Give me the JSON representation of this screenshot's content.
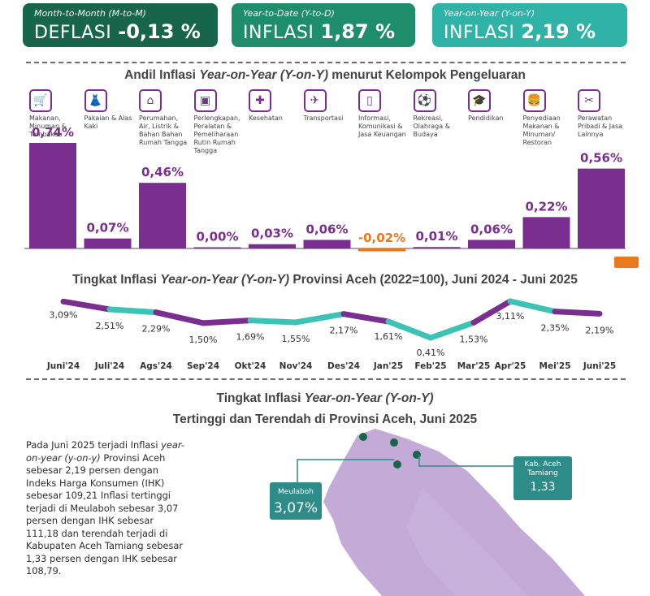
{
  "cards": [
    {
      "sub": "Month-to-Month (M-to-M)",
      "label": "DEFLASI",
      "value": "-0,13 %"
    },
    {
      "sub": "Year-to-Date (Y-to-D)",
      "label": "INFLASI",
      "value": "1,87  %"
    },
    {
      "sub": "Year-on-Year (Y-on-Y)",
      "label": "INFLASI",
      "value": "2,19 %"
    }
  ],
  "contrib": {
    "title_pre": "Andil Inflasi ",
    "title_em": "Year-on-Year (Y-on-Y)",
    "title_post": " menurut Kelompok Pengeluaran"
  },
  "categories": [
    {
      "name": "Makanan, Minuman & Tembakau",
      "icon": "grocery-basket-icon",
      "glyph": "🛒"
    },
    {
      "name": "Pakaian & Alas Kaki",
      "icon": "dress-icon",
      "glyph": "👗"
    },
    {
      "name": "Perumahan, Air, Listrik & Bahan Bahan Rumah Tangga",
      "icon": "house-icon",
      "glyph": "⌂"
    },
    {
      "name": "Perlengkapan, Peralatan & Pemeliharaan Rutin Rumah Tangga",
      "icon": "iron-icon",
      "glyph": "▣"
    },
    {
      "name": "Kesehatan",
      "icon": "medical-kit-icon",
      "glyph": "✚"
    },
    {
      "name": "Transportasi",
      "icon": "airplane-icon",
      "glyph": "✈"
    },
    {
      "name": "Informasi, Komunikasi & Jasa Keuangan",
      "icon": "phone-icon",
      "glyph": "▯"
    },
    {
      "name": "Rekreasi, Olahraga & Budaya",
      "icon": "soccer-player-icon",
      "glyph": "⚽"
    },
    {
      "name": "Pendidikan",
      "icon": "graduation-cap-icon",
      "glyph": "🎓"
    },
    {
      "name": "Penyediaan Makanan & Minuman/ Restoran",
      "icon": "fast-food-icon",
      "glyph": "🍔"
    },
    {
      "name": "Perawatan Pribadi & Jasa Lainnya",
      "icon": "tools-icon",
      "glyph": "✂"
    }
  ],
  "line": {
    "title_pre": "Tingkat Inflasi ",
    "title_em": "Year-on-Year (Y-on-Y)",
    "title_post": " Provinsi Aceh (2022=100), Juni 2024 - Juni 2025"
  },
  "map_title": {
    "line1_pre": "Tingkat Inflasi ",
    "line1_em": "Year-on-Year (Y-on-Y)",
    "line2": "Tertinggi dan Terendah di Provinsi Aceh, Juni 2025"
  },
  "paragraph": {
    "p1": "Pada Juni 2025 terjadi Inflasi ",
    "em": "year-on-year (y-on-y)",
    "p2": " Provinsi Aceh sebesar 2,19 persen dengan Indeks Harga Konsumen (IHK) sebesar 109,21 Inflasi tertinggi terjadi di Meulaboh sebesar 3,07 persen dengan IHK sebesar 111,18 dan terendah terjadi di Kabupaten Aceh Tamiang sebesar 1,33 persen dengan IHK sebesar 108,79."
  },
  "callouts": {
    "high": {
      "name": "Meulaboh",
      "value": "3,07%"
    },
    "low": {
      "name": "Kab. Aceh Tamiang",
      "value": "1,33"
    }
  },
  "colors": {
    "purple": "#7a2f90",
    "teal": "#3cc3b5",
    "orange": "#e8791f",
    "green_dark": "#17664c"
  },
  "chart_data": [
    {
      "type": "bar",
      "title": "Andil Inflasi Year-on-Year (Y-on-Y) menurut Kelompok Pengeluaran",
      "categories": [
        "Makanan, Minuman & Tembakau",
        "Pakaian & Alas Kaki",
        "Perumahan, Air, Listrik & Bahan Bahan Rumah Tangga",
        "Perlengkapan, Peralatan & Pemeliharaan Rutin Rumah Tangga",
        "Kesehatan",
        "Transportasi",
        "Informasi, Komunikasi & Jasa Keuangan",
        "Rekreasi, Olahraga & Budaya",
        "Pendidikan",
        "Penyediaan Makanan & Minuman/ Restoran",
        "Perawatan Pribadi & Jasa Lainnya"
      ],
      "values": [
        0.74,
        0.07,
        0.46,
        0.0,
        0.03,
        0.06,
        -0.02,
        0.01,
        0.06,
        0.22,
        0.56
      ],
      "labels": [
        "0,74%",
        "0,07%",
        "0,46%",
        "0,00%",
        "0,03%",
        "0,06%",
        "-0,02%",
        "0,01%",
        "0,06%",
        "0,22%",
        "0,56%"
      ],
      "ylabel": "",
      "xlabel": ""
    },
    {
      "type": "line",
      "title": "Tingkat Inflasi Year-on-Year (Y-on-Y) Provinsi Aceh (2022=100), Juni 2024 - Juni 2025",
      "x": [
        "Juni'24",
        "Juli'24",
        "Ags'24",
        "Sep'24",
        "Okt'24",
        "Nov'24",
        "Des'24",
        "Jan'25",
        "Feb'25",
        "Mar'25",
        "Apr'25",
        "Mei'25",
        "Juni'25"
      ],
      "values": [
        3.09,
        2.51,
        2.29,
        1.5,
        1.69,
        1.55,
        2.17,
        1.61,
        0.41,
        1.53,
        3.11,
        2.35,
        2.19
      ],
      "labels": [
        "3,09%",
        "2,51%",
        "2,29%",
        "1,50%",
        "1,69%",
        "1,55%",
        "2,17%",
        "1,61%",
        "0,41%",
        "1,53%",
        "3,11%",
        "2,35%",
        "2,19%"
      ]
    }
  ]
}
